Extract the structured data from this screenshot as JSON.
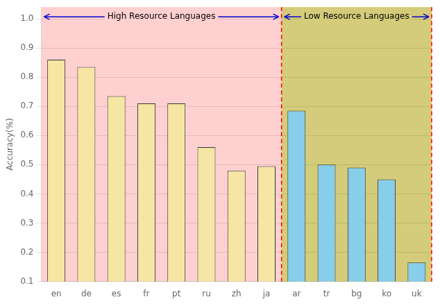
{
  "chart_data": {
    "type": "bar",
    "categories": [
      "en",
      "de",
      "es",
      "fr",
      "pt",
      "ru",
      "zh",
      "ja",
      "ar",
      "tr",
      "bg",
      "ko",
      "uk"
    ],
    "values": [
      0.86,
      0.835,
      0.735,
      0.71,
      0.71,
      0.56,
      0.48,
      0.495,
      0.685,
      0.5,
      0.49,
      0.45,
      0.165
    ],
    "colors": [
      "#F5E6A3",
      "#F5E6A3",
      "#F5E6A3",
      "#F5E6A3",
      "#F5E6A3",
      "#F5E6A3",
      "#F5E6A3",
      "#F5E6A3",
      "#87CEEB",
      "#87CEEB",
      "#87CEEB",
      "#87CEEB",
      "#87CEEB"
    ],
    "ylabel": "Accuracy(%)",
    "ylim": [
      0.1,
      1.04
    ],
    "yticks": [
      0.1,
      0.2,
      0.3,
      0.4,
      0.5,
      0.6,
      0.7,
      0.8,
      0.9,
      {
        "value": 1.0,
        "label": "1.0"
      }
    ],
    "grid": true,
    "annotations": [
      {
        "text": "High Resource Languages",
        "from": "en",
        "to": "ja",
        "color": "#FFD0D0"
      },
      {
        "text": "Low Resource Languages",
        "from": "ar",
        "to": "uk",
        "color": "#D4CC7A"
      }
    ]
  }
}
